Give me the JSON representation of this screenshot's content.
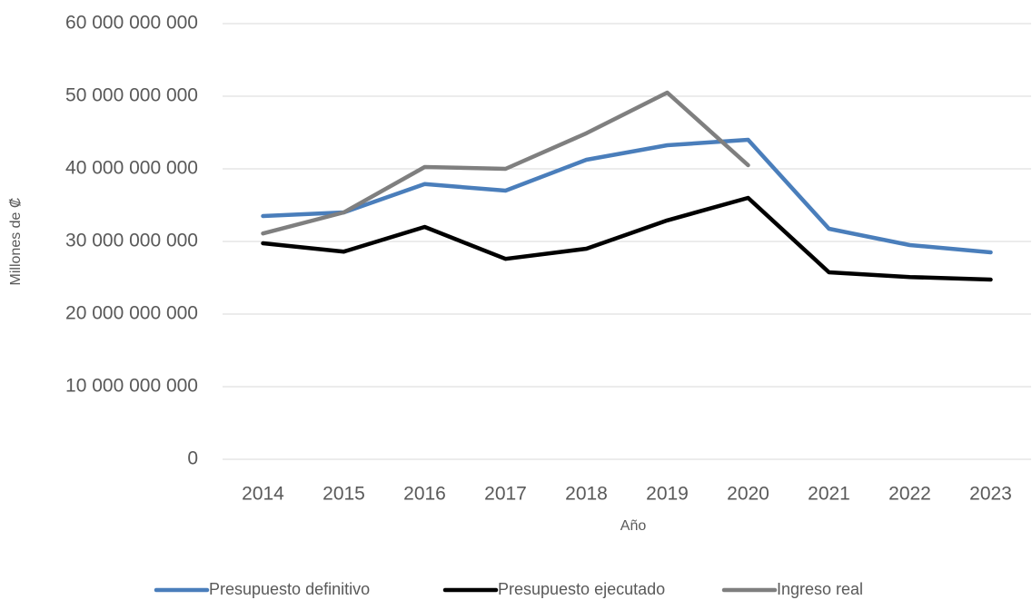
{
  "chart_data": {
    "type": "line",
    "x_label": "Año",
    "y_label": "Millones de ₡",
    "categories": [
      "2014",
      "2015",
      "2016",
      "2017",
      "2018",
      "2019",
      "2020",
      "2021",
      "2022",
      "2023"
    ],
    "series": [
      {
        "name": "Presupuesto definitivo",
        "color": "#4a7ebb",
        "values": [
          33500000000,
          34000000000,
          37900000000,
          37000000000,
          41250000000,
          43250000000,
          44000000000,
          31750000000,
          29500000000,
          28500000000
        ]
      },
      {
        "name": "Presupuesto ejecutado",
        "color": "#000000",
        "values": [
          29750000000,
          28600000000,
          32000000000,
          27600000000,
          29000000000,
          32900000000,
          36000000000,
          25750000000,
          25100000000,
          24750000000
        ]
      },
      {
        "name": "Ingreso real",
        "color": "#7f7f7f",
        "values": [
          31100000000,
          34000000000,
          40250000000,
          40000000000,
          44900000000,
          50500000000,
          40500000000,
          null,
          null,
          null
        ]
      }
    ],
    "ylim": [
      0,
      60000000000
    ],
    "yticks": [
      0,
      {
        "value": 10000000000,
        "label": "10 000 000 000"
      },
      {
        "value": 20000000000,
        "label": "20 000 000 000"
      },
      {
        "value": 30000000000,
        "label": "30 000 000 000"
      },
      {
        "value": 40000000000,
        "label": "40 000 000 000"
      },
      {
        "value": 50000000000,
        "label": "50 000 000 000"
      },
      {
        "value": 60000000000,
        "label": "60 000 000 000"
      }
    ],
    "grid": true,
    "legend": "bottom"
  }
}
